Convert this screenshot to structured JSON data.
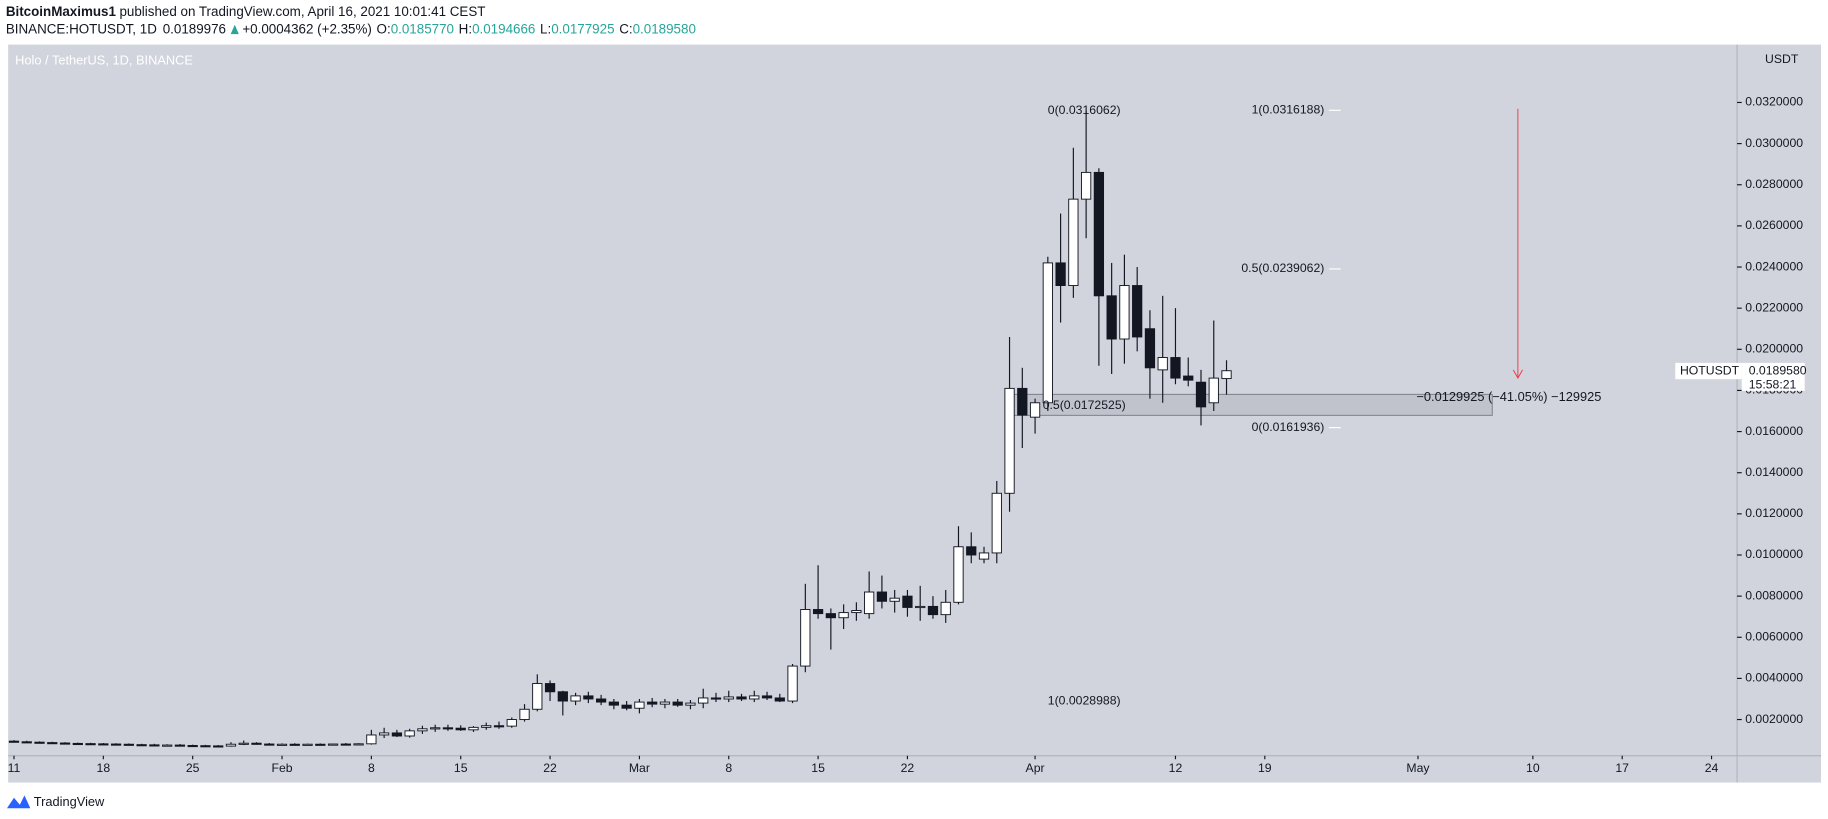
{
  "header": {
    "author": "BitcoinMaximus1",
    "published": "published on TradingView.com, April 16, 2021 10:01:41 CEST",
    "symbol": "BINANCE:HOTUSDT, 1D",
    "price": "0.0189976",
    "change": "+0.0004362 (+2.35%)",
    "ohlc": [
      {
        "key": "O:",
        "value": "0.0185770"
      },
      {
        "key": "H:",
        "value": "0.0194666"
      },
      {
        "key": "L:",
        "value": "0.0177925"
      },
      {
        "key": "C:",
        "value": "0.0189580"
      }
    ]
  },
  "chart_data": {
    "type": "candlestick",
    "title": "Holo / TetherUS, 1D, BINANCE",
    "currency": "USDT",
    "up_color": "#ffffff",
    "down_color": "#131722",
    "x": [
      "2021-01-11",
      "2021-01-12",
      "2021-01-13",
      "2021-01-14",
      "2021-01-15",
      "2021-01-16",
      "2021-01-17",
      "2021-01-18",
      "2021-01-19",
      "2021-01-20",
      "2021-01-21",
      "2021-01-22",
      "2021-01-23",
      "2021-01-24",
      "2021-01-25",
      "2021-01-26",
      "2021-01-27",
      "2021-01-28",
      "2021-01-29",
      "2021-01-30",
      "2021-01-31",
      "2021-02-01",
      "2021-02-02",
      "2021-02-03",
      "2021-02-04",
      "2021-02-05",
      "2021-02-06",
      "2021-02-07",
      "2021-02-08",
      "2021-02-09",
      "2021-02-10",
      "2021-02-11",
      "2021-02-12",
      "2021-02-13",
      "2021-02-14",
      "2021-02-15",
      "2021-02-16",
      "2021-02-17",
      "2021-02-18",
      "2021-02-19",
      "2021-02-20",
      "2021-02-21",
      "2021-02-22",
      "2021-02-23",
      "2021-02-24",
      "2021-02-25",
      "2021-02-26",
      "2021-02-27",
      "2021-02-28",
      "2021-03-01",
      "2021-03-02",
      "2021-03-03",
      "2021-03-04",
      "2021-03-05",
      "2021-03-06",
      "2021-03-07",
      "2021-03-08",
      "2021-03-09",
      "2021-03-10",
      "2021-03-11",
      "2021-03-12",
      "2021-03-13",
      "2021-03-14",
      "2021-03-15",
      "2021-03-16",
      "2021-03-17",
      "2021-03-18",
      "2021-03-19",
      "2021-03-20",
      "2021-03-21",
      "2021-03-22",
      "2021-03-23",
      "2021-03-24",
      "2021-03-25",
      "2021-03-26",
      "2021-03-27",
      "2021-03-28",
      "2021-03-29",
      "2021-03-30",
      "2021-03-31",
      "2021-04-01",
      "2021-04-02",
      "2021-04-03",
      "2021-04-04",
      "2021-04-05",
      "2021-04-06",
      "2021-04-07",
      "2021-04-08",
      "2021-04-09",
      "2021-04-10",
      "2021-04-11",
      "2021-04-12",
      "2021-04-13",
      "2021-04-14",
      "2021-04-15",
      "2021-04-16"
    ],
    "open": [
      0.00095,
      0.00092,
      0.0009,
      0.00088,
      0.00086,
      0.00084,
      0.00083,
      0.00082,
      0.00081,
      0.0008,
      0.00078,
      0.00077,
      0.00075,
      0.00076,
      0.00074,
      0.00073,
      0.00072,
      0.00071,
      0.0008,
      0.00085,
      0.00081,
      0.00079,
      0.0008,
      0.00078,
      0.0008,
      0.00079,
      0.00081,
      0.0008,
      0.00082,
      0.00125,
      0.00135,
      0.0012,
      0.00145,
      0.00155,
      0.0016,
      0.00158,
      0.0015,
      0.00162,
      0.0017,
      0.00168,
      0.002,
      0.0025,
      0.00375,
      0.00335,
      0.0029,
      0.00315,
      0.003,
      0.00285,
      0.0027,
      0.00255,
      0.00285,
      0.00275,
      0.00285,
      0.0027,
      0.0028,
      0.00305,
      0.003,
      0.0031,
      0.003,
      0.00315,
      0.00305,
      0.0029,
      0.0046,
      0.00735,
      0.00715,
      0.00695,
      0.0072,
      0.00715,
      0.0082,
      0.00775,
      0.008,
      0.00745,
      0.0075,
      0.0071,
      0.0077,
      0.0104,
      0.0098,
      0.0101,
      0.013,
      0.0181,
      0.0167,
      0.0174,
      0.0242,
      0.0231,
      0.0273,
      0.0286,
      0.0226,
      0.0205,
      0.0231,
      0.021,
      0.019,
      0.0196,
      0.0187,
      0.0184,
      0.0174,
      0.018577
    ],
    "high": [
      0.001,
      0.00097,
      0.00094,
      0.00092,
      0.0009,
      0.00088,
      0.00087,
      0.00086,
      0.00085,
      0.00084,
      0.00082,
      0.00082,
      0.0008,
      0.00081,
      0.00078,
      0.00077,
      0.00076,
      0.0009,
      0.00098,
      0.0009,
      0.00086,
      0.00084,
      0.00085,
      0.00083,
      0.00084,
      0.00083,
      0.00086,
      0.00085,
      0.0015,
      0.0016,
      0.0015,
      0.00155,
      0.0017,
      0.00175,
      0.00175,
      0.00172,
      0.00168,
      0.00185,
      0.0019,
      0.0021,
      0.00275,
      0.0042,
      0.0039,
      0.0034,
      0.0033,
      0.00335,
      0.0032,
      0.003,
      0.0029,
      0.003,
      0.00305,
      0.003,
      0.003,
      0.00295,
      0.0035,
      0.0033,
      0.0034,
      0.00325,
      0.0034,
      0.00335,
      0.00325,
      0.0047,
      0.0086,
      0.0095,
      0.0074,
      0.0076,
      0.0077,
      0.0092,
      0.009,
      0.0083,
      0.0083,
      0.0085,
      0.008,
      0.0083,
      0.0114,
      0.0111,
      0.0104,
      0.0136,
      0.0206,
      0.0191,
      0.0176,
      0.0245,
      0.0266,
      0.0298,
      0.03161,
      0.0288,
      0.0242,
      0.0246,
      0.024,
      0.0219,
      0.0226,
      0.022,
      0.0196,
      0.019,
      0.0214,
      0.0194666
    ],
    "low": [
      0.00088,
      0.00087,
      0.00085,
      0.00083,
      0.00082,
      0.0008,
      0.00079,
      0.00078,
      0.00077,
      0.00075,
      0.00074,
      0.00072,
      0.00071,
      0.00072,
      0.0007,
      0.00069,
      0.00068,
      0.00068,
      0.00076,
      0.00078,
      0.00077,
      0.00075,
      0.00076,
      0.00075,
      0.00076,
      0.00075,
      0.00077,
      0.00077,
      0.00078,
      0.0011,
      0.00115,
      0.00112,
      0.0013,
      0.0014,
      0.00145,
      0.00145,
      0.0014,
      0.0015,
      0.00155,
      0.0016,
      0.0019,
      0.0024,
      0.0029,
      0.0022,
      0.0027,
      0.0028,
      0.0027,
      0.0025,
      0.00245,
      0.0023,
      0.0026,
      0.00255,
      0.00262,
      0.0025,
      0.00255,
      0.00285,
      0.00285,
      0.0029,
      0.00285,
      0.00295,
      0.00285,
      0.0028,
      0.0043,
      0.0069,
      0.0054,
      0.0064,
      0.0068,
      0.0069,
      0.0074,
      0.0072,
      0.007,
      0.0068,
      0.0069,
      0.0067,
      0.0076,
      0.0096,
      0.0096,
      0.0096,
      0.0121,
      0.0152,
      0.0159,
      0.017,
      0.0213,
      0.0225,
      0.0254,
      0.0192,
      0.0188,
      0.0193,
      0.0199,
      0.0176,
      0.0174,
      0.0183,
      0.0182,
      0.0163,
      0.017,
      0.0177925
    ],
    "close": [
      0.00092,
      0.0009,
      0.00088,
      0.00086,
      0.00084,
      0.00083,
      0.00082,
      0.00081,
      0.0008,
      0.00078,
      0.00077,
      0.00075,
      0.00076,
      0.00074,
      0.00073,
      0.00072,
      0.00071,
      0.0008,
      0.00085,
      0.00081,
      0.00079,
      0.0008,
      0.00078,
      0.0008,
      0.00079,
      0.00081,
      0.0008,
      0.00082,
      0.00125,
      0.00135,
      0.0012,
      0.00145,
      0.00155,
      0.0016,
      0.00158,
      0.0015,
      0.00162,
      0.0017,
      0.00168,
      0.002,
      0.0025,
      0.00375,
      0.00335,
      0.0029,
      0.00315,
      0.003,
      0.00285,
      0.0027,
      0.00255,
      0.00285,
      0.00275,
      0.00285,
      0.0027,
      0.0028,
      0.00305,
      0.003,
      0.0031,
      0.003,
      0.00315,
      0.00305,
      0.0029,
      0.0046,
      0.00735,
      0.00715,
      0.00695,
      0.0072,
      0.0073,
      0.0082,
      0.00775,
      0.0079,
      0.00745,
      0.0075,
      0.0071,
      0.0077,
      0.0104,
      0.01,
      0.0101,
      0.013,
      0.0181,
      0.0168,
      0.0174,
      0.0242,
      0.0231,
      0.0273,
      0.0286,
      0.0226,
      0.0205,
      0.0231,
      0.0206,
      0.0191,
      0.0196,
      0.0186,
      0.0185,
      0.0172,
      0.0186,
      0.018958
    ],
    "xlim": [
      "2021-01-10",
      "2021-05-26"
    ],
    "xticks": [
      {
        "value": "2021-01-11",
        "label": "11"
      },
      {
        "value": "2021-01-18",
        "label": "18"
      },
      {
        "value": "2021-01-25",
        "label": "25"
      },
      {
        "value": "2021-02-01",
        "label": "Feb"
      },
      {
        "value": "2021-02-08",
        "label": "8"
      },
      {
        "value": "2021-02-15",
        "label": "15"
      },
      {
        "value": "2021-02-22",
        "label": "22"
      },
      {
        "value": "2021-03-01",
        "label": "Mar"
      },
      {
        "value": "2021-03-08",
        "label": "8"
      },
      {
        "value": "2021-03-15",
        "label": "15"
      },
      {
        "value": "2021-03-22",
        "label": "22"
      },
      {
        "value": "2021-04-01",
        "label": "Apr"
      },
      {
        "value": "2021-04-12",
        "label": "12"
      },
      {
        "value": "2021-04-19",
        "label": "19"
      },
      {
        "value": "2021-05-01",
        "label": "May"
      },
      {
        "value": "2021-05-10",
        "label": "10"
      },
      {
        "value": "2021-05-17",
        "label": "17"
      },
      {
        "value": "2021-05-24",
        "label": "24"
      }
    ],
    "ylim": [
      0.00024,
      0.0347
    ],
    "yticks": [
      {
        "value": 0.002,
        "label": "0.0020000"
      },
      {
        "value": 0.004,
        "label": "0.0040000"
      },
      {
        "value": 0.006,
        "label": "0.0060000"
      },
      {
        "value": 0.008,
        "label": "0.0080000"
      },
      {
        "value": 0.01,
        "label": "0.0100000"
      },
      {
        "value": 0.012,
        "label": "0.0120000"
      },
      {
        "value": 0.014,
        "label": "0.0140000"
      },
      {
        "value": 0.016,
        "label": "0.0160000"
      },
      {
        "value": 0.018,
        "label": "0.0180000"
      },
      {
        "value": 0.02,
        "label": "0.0200000"
      },
      {
        "value": 0.022,
        "label": "0.0220000"
      },
      {
        "value": 0.024,
        "label": "0.0240000"
      },
      {
        "value": 0.026,
        "label": "0.0260000"
      },
      {
        "value": 0.028,
        "label": "0.0280000"
      },
      {
        "value": 0.03,
        "label": "0.0300000"
      },
      {
        "value": 0.032,
        "label": "0.0320000"
      }
    ],
    "grid": false,
    "fib_left": [
      {
        "label": "0(0.0316062)",
        "value": 0.0316062
      },
      {
        "label": "0.5(0.0172525)",
        "value": 0.0172525
      },
      {
        "label": "1(0.0028988)",
        "value": 0.0028988
      }
    ],
    "fib_right": [
      {
        "label": "1(0.0316188)",
        "value": 0.0316188
      },
      {
        "label": "0.5(0.0239062)",
        "value": 0.0239062
      },
      {
        "label": "0(0.0161936)",
        "value": 0.0161936
      }
    ],
    "measure": "−0.0129925 (−41.05%) −129925",
    "price_label": {
      "symbol": "HOTUSDT",
      "price": "0.0189580",
      "countdown": "15:58:21"
    }
  },
  "footer": {
    "logo": "TradingView"
  }
}
